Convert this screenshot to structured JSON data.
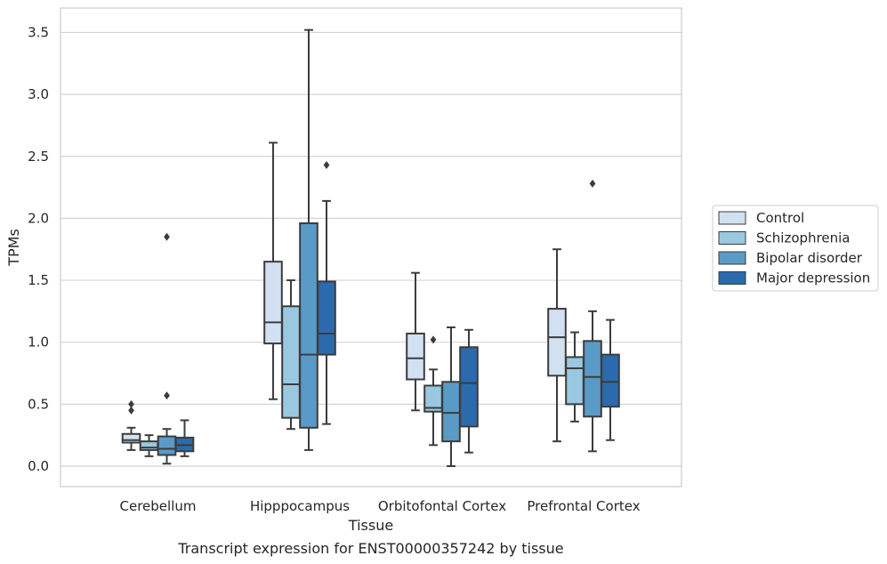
{
  "chart_data": {
    "type": "box",
    "title": "",
    "caption": "Transcript expression for ENST00000357242 by tissue",
    "xlabel": "Tissue",
    "ylabel": "TPMs",
    "ylim": [
      -0.17,
      3.7
    ],
    "yticks": [
      "0.0",
      "0.5",
      "1.0",
      "1.5",
      "2.0",
      "2.5",
      "3.0",
      "3.5"
    ],
    "grid": true,
    "legend_position": "right",
    "categories": [
      "Cerebellum",
      "Hipppocampus",
      "Orbitofontal Cortex",
      "Prefrontal Cortex"
    ],
    "series": [
      {
        "name": "Control",
        "color": "#d1e1f2",
        "boxes": [
          {
            "whislo": 0.13,
            "q1": 0.19,
            "med": 0.21,
            "q3": 0.26,
            "whishi": 0.31,
            "fliers": [
              0.45,
              0.5
            ]
          },
          {
            "whislo": 0.54,
            "q1": 0.99,
            "med": 1.16,
            "q3": 1.65,
            "whishi": 2.61,
            "fliers": []
          },
          {
            "whislo": 0.45,
            "q1": 0.7,
            "med": 0.87,
            "q3": 1.07,
            "whishi": 1.56,
            "fliers": []
          },
          {
            "whislo": 0.2,
            "q1": 0.73,
            "med": 1.04,
            "q3": 1.27,
            "whishi": 1.75,
            "fliers": []
          }
        ]
      },
      {
        "name": "Schizophrenia",
        "color": "#9ac8e0",
        "boxes": [
          {
            "whislo": 0.08,
            "q1": 0.13,
            "med": 0.15,
            "q3": 0.2,
            "whishi": 0.25,
            "fliers": []
          },
          {
            "whislo": 0.3,
            "q1": 0.39,
            "med": 0.66,
            "q3": 1.29,
            "whishi": 1.5,
            "fliers": []
          },
          {
            "whislo": 0.17,
            "q1": 0.44,
            "med": 0.47,
            "q3": 0.65,
            "whishi": 0.78,
            "fliers": [
              1.02
            ]
          },
          {
            "whislo": 0.36,
            "q1": 0.5,
            "med": 0.79,
            "q3": 0.88,
            "whishi": 1.08,
            "fliers": []
          }
        ]
      },
      {
        "name": "Bipolar disorder",
        "color": "#5a9ac6",
        "boxes": [
          {
            "whislo": 0.02,
            "q1": 0.09,
            "med": 0.14,
            "q3": 0.24,
            "whishi": 0.3,
            "fliers": [
              0.57,
              1.85
            ]
          },
          {
            "whislo": 0.13,
            "q1": 0.31,
            "med": 0.9,
            "q3": 1.96,
            "whishi": 3.52,
            "fliers": []
          },
          {
            "whislo": 0.0,
            "q1": 0.2,
            "med": 0.43,
            "q3": 0.68,
            "whishi": 1.12,
            "fliers": []
          },
          {
            "whislo": 0.12,
            "q1": 0.4,
            "med": 0.72,
            "q3": 1.01,
            "whishi": 1.25,
            "fliers": [
              2.28
            ]
          }
        ]
      },
      {
        "name": "Major depression",
        "color": "#2b6aad",
        "boxes": [
          {
            "whislo": 0.08,
            "q1": 0.12,
            "med": 0.17,
            "q3": 0.23,
            "whishi": 0.37,
            "fliers": []
          },
          {
            "whislo": 0.34,
            "q1": 0.9,
            "med": 1.07,
            "q3": 1.49,
            "whishi": 2.14,
            "fliers": [
              2.43
            ]
          },
          {
            "whislo": 0.11,
            "q1": 0.32,
            "med": 0.67,
            "q3": 0.96,
            "whishi": 1.1,
            "fliers": []
          },
          {
            "whislo": 0.21,
            "q1": 0.48,
            "med": 0.68,
            "q3": 0.9,
            "whishi": 1.18,
            "fliers": []
          }
        ]
      }
    ]
  }
}
